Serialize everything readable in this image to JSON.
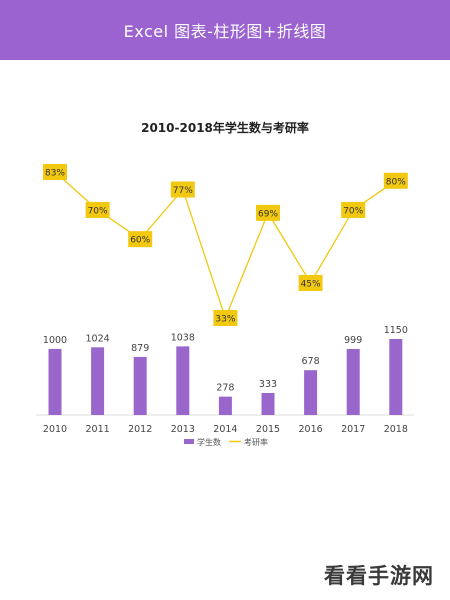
{
  "header": {
    "title": "Excel 图表-柱形图+折线图"
  },
  "chart_data": {
    "type": "bar",
    "title": "2010-2018年学生数与考研率",
    "categories": [
      "2010",
      "2011",
      "2012",
      "2013",
      "2014",
      "2015",
      "2016",
      "2017",
      "2018"
    ],
    "series": [
      {
        "name": "学生数",
        "type": "bar",
        "values": [
          1000,
          1024,
          879,
          1038,
          278,
          333,
          678,
          999,
          1150
        ],
        "color": "#9966cc"
      },
      {
        "name": "考研率",
        "type": "line",
        "values": [
          83,
          70,
          60,
          77,
          33,
          69,
          45,
          70,
          80
        ],
        "labels": [
          "83%",
          "70%",
          "60%",
          "77%",
          "33%",
          "69%",
          "45%",
          "70%",
          "80%"
        ],
        "color": "#f2c811"
      }
    ],
    "xlabel": "",
    "ylabel": "",
    "legend_position": "bottom",
    "grid": false
  },
  "watermark": {
    "text": "看看手游网"
  }
}
